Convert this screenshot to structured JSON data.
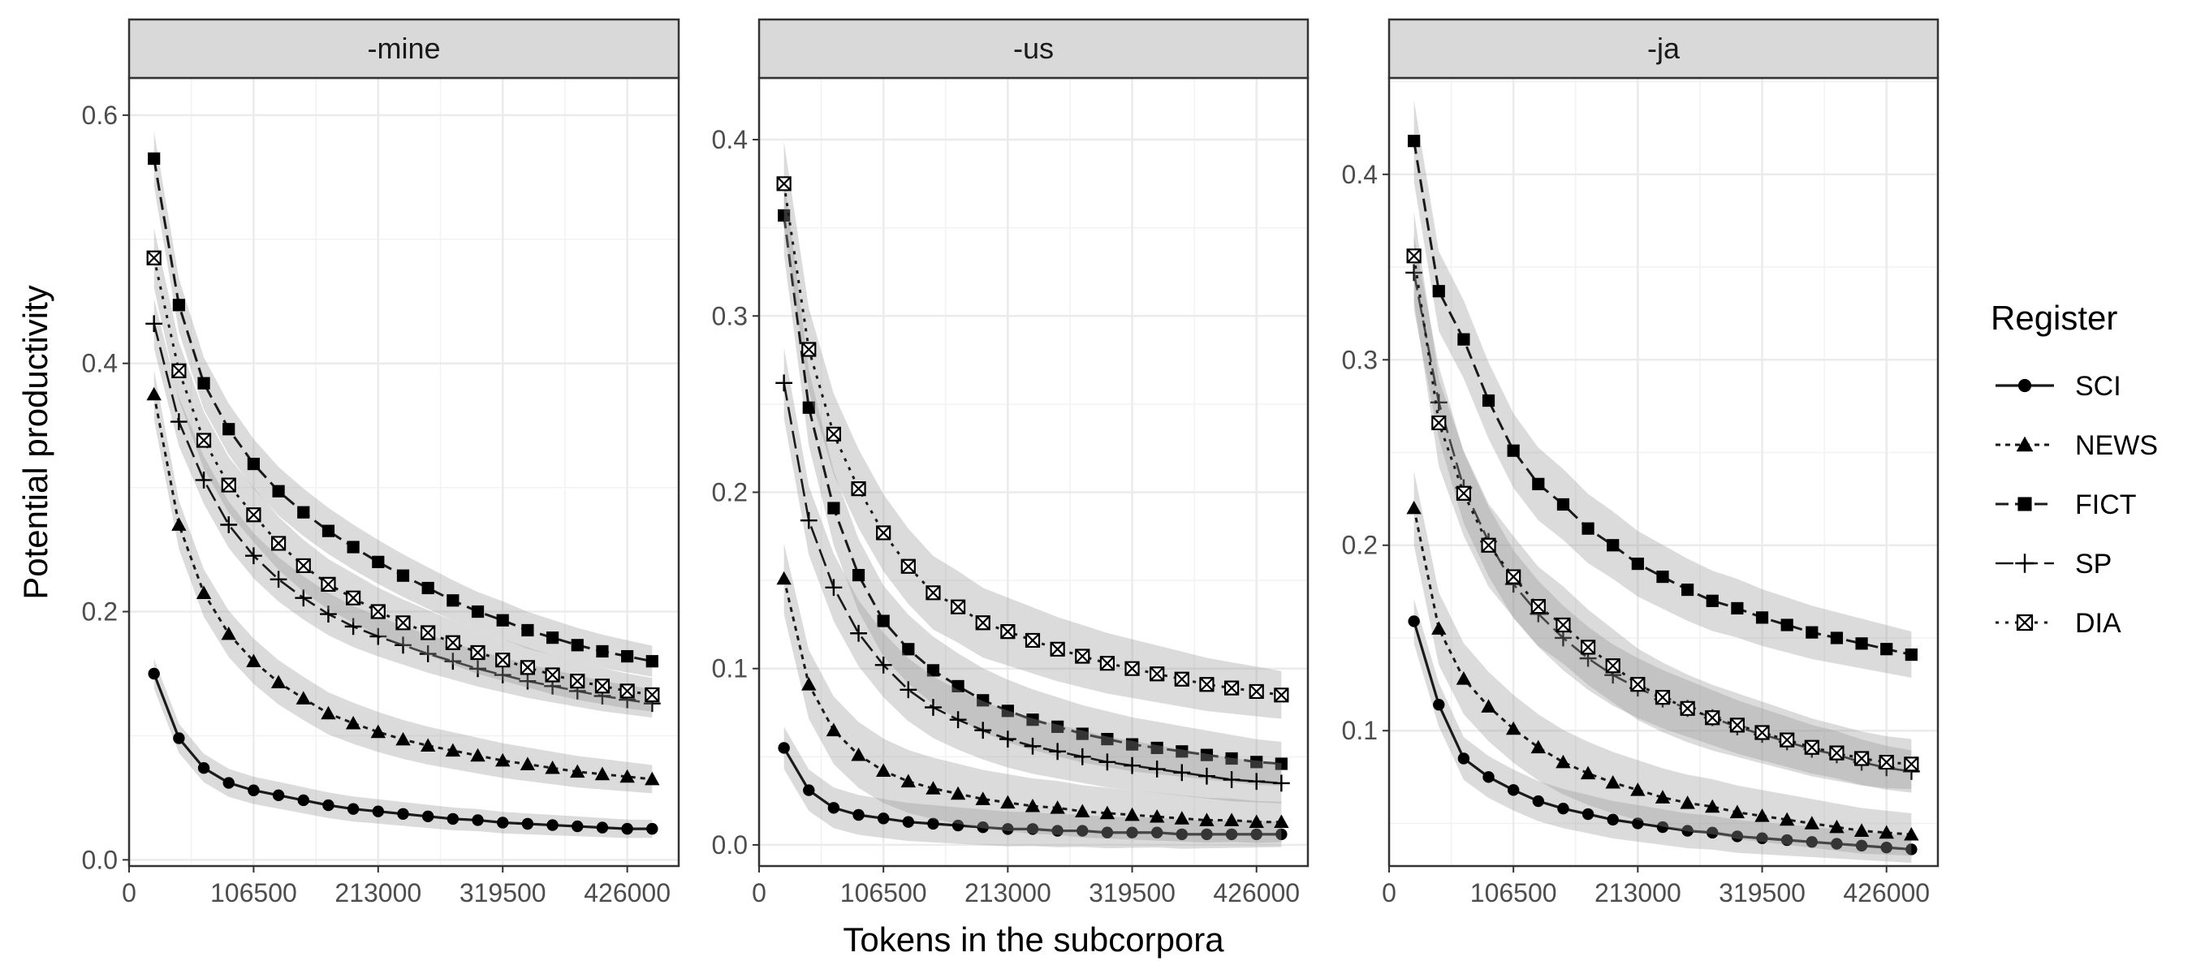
{
  "chart_data": {
    "type": "line",
    "ylabel": "Potential productivity",
    "xlabel": "Tokens in the subcorpora",
    "x_ticks": [
      0,
      106500,
      213000,
      319500,
      426000
    ],
    "x": [
      21300,
      42600,
      63900,
      85200,
      106500,
      127800,
      149100,
      170400,
      191700,
      213000,
      234300,
      255600,
      276900,
      298200,
      319500,
      340800,
      362100,
      383400,
      404700,
      426000,
      447300
    ],
    "xlim": [
      0,
      470000
    ],
    "legend": {
      "title": "Register",
      "position": "right",
      "entries": [
        "SCI",
        "NEWS",
        "FICT",
        "SP",
        "DIA"
      ]
    },
    "grid": true,
    "panels": [
      {
        "title": "-mine",
        "ylim": [
          -0.005,
          0.63
        ],
        "y_ticks": [
          0.0,
          0.2,
          0.4,
          0.6
        ],
        "y_tick_labels": [
          "0.0",
          "0.2",
          "0.4",
          "0.6"
        ],
        "series": [
          {
            "name": "SCI",
            "values": [
              0.15,
              0.098,
              0.074,
              0.062,
              0.056,
              0.052,
              0.048,
              0.044,
              0.041,
              0.039,
              0.037,
              0.035,
              0.033,
              0.032,
              0.03,
              0.029,
              0.028,
              0.027,
              0.026,
              0.025,
              0.025
            ]
          },
          {
            "name": "NEWS",
            "values": [
              0.375,
              0.27,
              0.215,
              0.182,
              0.16,
              0.143,
              0.13,
              0.118,
              0.11,
              0.103,
              0.097,
              0.092,
              0.088,
              0.084,
              0.08,
              0.077,
              0.074,
              0.071,
              0.069,
              0.067,
              0.065
            ]
          },
          {
            "name": "FICT",
            "values": [
              0.565,
              0.447,
              0.384,
              0.347,
              0.319,
              0.297,
              0.28,
              0.265,
              0.252,
              0.24,
              0.229,
              0.219,
              0.209,
              0.2,
              0.193,
              0.185,
              0.179,
              0.173,
              0.168,
              0.164,
              0.16
            ]
          },
          {
            "name": "SP",
            "values": [
              0.432,
              0.353,
              0.306,
              0.27,
              0.245,
              0.226,
              0.211,
              0.198,
              0.188,
              0.18,
              0.173,
              0.166,
              0.16,
              0.154,
              0.149,
              0.144,
              0.14,
              0.136,
              0.132,
              0.129,
              0.126
            ]
          },
          {
            "name": "DIA",
            "values": [
              0.485,
              0.394,
              0.338,
              0.302,
              0.278,
              0.255,
              0.237,
              0.222,
              0.211,
              0.2,
              0.191,
              0.183,
              0.175,
              0.167,
              0.161,
              0.155,
              0.149,
              0.144,
              0.14,
              0.136,
              0.133
            ]
          }
        ]
      },
      {
        "title": "-us",
        "ylim": [
          -0.012,
          0.435
        ],
        "y_ticks": [
          0.0,
          0.1,
          0.2,
          0.3,
          0.4
        ],
        "y_tick_labels": [
          "0.0",
          "0.1",
          "0.2",
          "0.3",
          "0.4"
        ],
        "series": [
          {
            "name": "SCI",
            "values": [
              0.055,
              0.031,
              0.021,
              0.017,
              0.015,
              0.013,
              0.012,
              0.011,
              0.01,
              0.009,
              0.009,
              0.008,
              0.008,
              0.007,
              0.007,
              0.007,
              0.006,
              0.006,
              0.006,
              0.006,
              0.006
            ]
          },
          {
            "name": "NEWS",
            "values": [
              0.151,
              0.091,
              0.065,
              0.051,
              0.042,
              0.036,
              0.032,
              0.029,
              0.026,
              0.024,
              0.022,
              0.021,
              0.019,
              0.018,
              0.017,
              0.016,
              0.015,
              0.014,
              0.014,
              0.013,
              0.013
            ]
          },
          {
            "name": "FICT",
            "values": [
              0.357,
              0.248,
              0.191,
              0.153,
              0.127,
              0.111,
              0.099,
              0.09,
              0.082,
              0.076,
              0.071,
              0.067,
              0.063,
              0.06,
              0.057,
              0.055,
              0.053,
              0.051,
              0.049,
              0.047,
              0.046
            ]
          },
          {
            "name": "SP",
            "values": [
              0.262,
              0.184,
              0.146,
              0.12,
              0.102,
              0.088,
              0.078,
              0.071,
              0.065,
              0.06,
              0.056,
              0.053,
              0.05,
              0.047,
              0.045,
              0.043,
              0.041,
              0.039,
              0.037,
              0.036,
              0.035
            ]
          },
          {
            "name": "DIA",
            "values": [
              0.375,
              0.281,
              0.233,
              0.202,
              0.177,
              0.158,
              0.143,
              0.135,
              0.126,
              0.121,
              0.116,
              0.111,
              0.107,
              0.103,
              0.1,
              0.097,
              0.094,
              0.091,
              0.089,
              0.087,
              0.085
            ]
          }
        ]
      },
      {
        "title": "-ja",
        "ylim": [
          0.027,
          0.452
        ],
        "y_ticks": [
          0.1,
          0.2,
          0.3,
          0.4
        ],
        "y_tick_labels": [
          "0.1",
          "0.2",
          "0.3",
          "0.4"
        ],
        "series": [
          {
            "name": "SCI",
            "values": [
              0.159,
              0.114,
              0.085,
              0.075,
              0.068,
              0.062,
              0.058,
              0.055,
              0.052,
              0.05,
              0.048,
              0.046,
              0.045,
              0.043,
              0.042,
              0.041,
              0.04,
              0.039,
              0.038,
              0.037,
              0.036
            ]
          },
          {
            "name": "NEWS",
            "values": [
              0.22,
              0.155,
              0.128,
              0.113,
              0.101,
              0.091,
              0.083,
              0.077,
              0.072,
              0.068,
              0.064,
              0.061,
              0.059,
              0.056,
              0.054,
              0.052,
              0.05,
              0.048,
              0.046,
              0.045,
              0.044
            ]
          },
          {
            "name": "FICT",
            "values": [
              0.418,
              0.337,
              0.311,
              0.278,
              0.251,
              0.233,
              0.222,
              0.209,
              0.2,
              0.19,
              0.183,
              0.176,
              0.17,
              0.166,
              0.161,
              0.157,
              0.153,
              0.15,
              0.147,
              0.144,
              0.141
            ]
          },
          {
            "name": "SP",
            "values": [
              0.347,
              0.277,
              0.231,
              0.202,
              0.179,
              0.163,
              0.15,
              0.139,
              0.13,
              0.123,
              0.117,
              0.112,
              0.107,
              0.102,
              0.098,
              0.094,
              0.09,
              0.087,
              0.083,
              0.08,
              0.078
            ]
          },
          {
            "name": "DIA",
            "values": [
              0.356,
              0.266,
              0.228,
              0.2,
              0.183,
              0.167,
              0.157,
              0.145,
              0.135,
              0.125,
              0.118,
              0.112,
              0.107,
              0.103,
              0.099,
              0.095,
              0.091,
              0.088,
              0.085,
              0.083,
              0.082
            ]
          }
        ]
      }
    ]
  }
}
